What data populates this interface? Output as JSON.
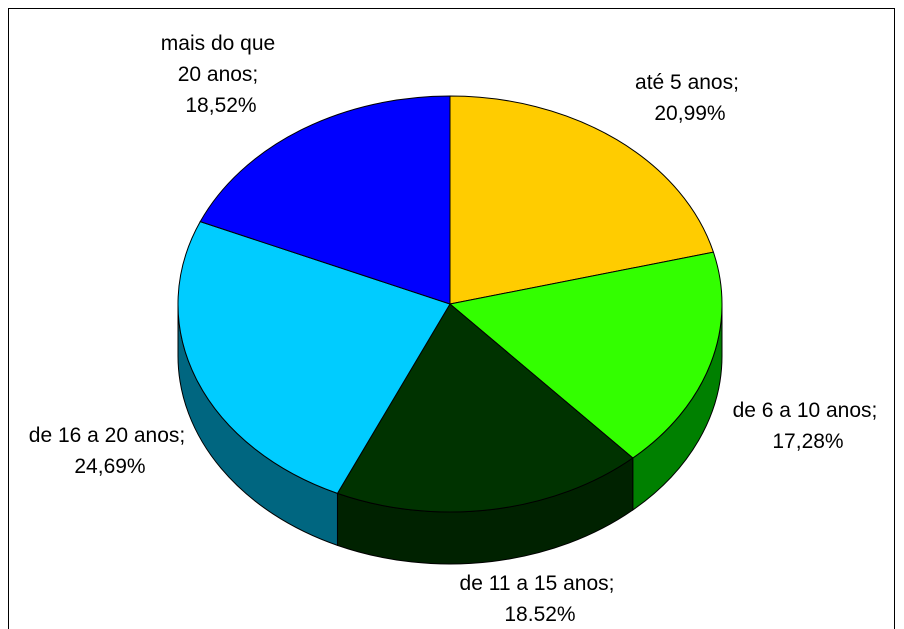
{
  "chart_data": {
    "type": "pie",
    "categories": [
      "até 5 anos;",
      "de 6 a 10 anos;",
      "de 11 a 15 anos;",
      "de 16 a 20 anos;",
      "mais do que 20 anos;"
    ],
    "values": [
      20.99,
      17.28,
      18.52,
      24.69,
      18.52
    ],
    "value_labels": [
      "20,99%",
      "17,28%",
      "18.52%",
      "24,69%",
      "18,52%"
    ],
    "colors": [
      "#ffcc00",
      "#33ff00",
      "#003300",
      "#00ccff",
      "#0000ff"
    ],
    "side_colors": [
      "#806600",
      "#008000",
      "#002200",
      "#006680",
      "#000080"
    ],
    "three_d": true
  }
}
